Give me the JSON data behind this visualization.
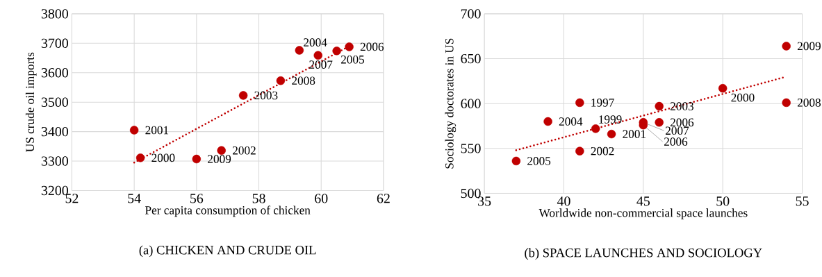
{
  "chart_data": [
    {
      "type": "scatter",
      "title": "(a) CHICKEN AND CRUDE OIL",
      "xlabel": "Per capita consumption of chicken",
      "ylabel": "US crude oil imports",
      "xlim": [
        52,
        62
      ],
      "xticks": [
        52,
        54,
        56,
        58,
        60,
        62
      ],
      "ylim": [
        3200,
        3800
      ],
      "yticks": [
        3200,
        3300,
        3400,
        3500,
        3600,
        3700,
        3800
      ],
      "grid": true,
      "marker": "circle",
      "series": [
        {
          "color": "#c00000",
          "x": [
            54.0,
            54.2,
            56.0,
            56.8,
            57.5,
            58.7,
            59.3,
            59.9,
            60.5,
            60.9
          ],
          "values": [
            3405,
            3311,
            3307,
            3336,
            3523,
            3573,
            3676,
            3659,
            3674,
            3688
          ]
        },
        {
          "type": "line",
          "color": "#c00000",
          "line_style": "dotted",
          "marker": "none",
          "x": [
            54.0,
            60.9
          ],
          "values": [
            3295,
            3690
          ]
        }
      ],
      "annotations": [
        {
          "text": "2001",
          "x": 54.0,
          "y": 3405
        },
        {
          "text": "2000",
          "x": 54.2,
          "y": 3311
        },
        {
          "text": "2009",
          "x": 56.0,
          "y": 3307
        },
        {
          "text": "2002",
          "x": 56.8,
          "y": 3336
        },
        {
          "text": "2003",
          "x": 57.5,
          "y": 3523
        },
        {
          "text": "2008",
          "x": 58.7,
          "y": 3573
        },
        {
          "text": "2004",
          "x": 59.3,
          "y": 3676
        },
        {
          "text": "2007",
          "x": 59.9,
          "y": 3659
        },
        {
          "text": "2005",
          "x": 60.5,
          "y": 3674
        },
        {
          "text": "2006",
          "x": 60.9,
          "y": 3688
        }
      ]
    },
    {
      "type": "scatter",
      "title": "(b) SPACE LAUNCHES AND SOCIOLOGY",
      "xlabel": "Worldwide non-commercial space launches",
      "ylabel": "Sociology doctorates in US",
      "xlim": [
        35,
        55
      ],
      "xticks": [
        35,
        40,
        45,
        50,
        55
      ],
      "ylim": [
        500,
        700
      ],
      "yticks": [
        500,
        550,
        600,
        650,
        700
      ],
      "grid": true,
      "marker": "circle",
      "series": [
        {
          "color": "#c00000",
          "x": [
            37,
            39,
            41,
            41,
            42,
            43,
            45,
            45,
            46,
            46,
            50,
            54,
            54
          ],
          "values": [
            536,
            580,
            601,
            547,
            572,
            566,
            579,
            576,
            597,
            579,
            617,
            664,
            601
          ]
        },
        {
          "type": "line",
          "color": "#c00000",
          "line_style": "dotted",
          "marker": "none",
          "x": [
            37,
            53.8
          ],
          "values": [
            548,
            629
          ]
        }
      ],
      "annotations": [
        {
          "text": "2005",
          "x": 37,
          "y": 536
        },
        {
          "text": "2004",
          "x": 39,
          "y": 580
        },
        {
          "text": "1997",
          "x": 41,
          "y": 601
        },
        {
          "text": "2002",
          "x": 41,
          "y": 547
        },
        {
          "text": "1999",
          "x": 42,
          "y": 572
        },
        {
          "text": "2001",
          "x": 43,
          "y": 566
        },
        {
          "text": "2007",
          "x": 45,
          "y": 579
        },
        {
          "text": "2006",
          "x": 45,
          "y": 576
        },
        {
          "text": "2003",
          "x": 46,
          "y": 597
        },
        {
          "text": "2006",
          "x": 46,
          "y": 579
        },
        {
          "text": "2000",
          "x": 50,
          "y": 617
        },
        {
          "text": "2009",
          "x": 54,
          "y": 664
        },
        {
          "text": "2008",
          "x": 54,
          "y": 601
        }
      ]
    }
  ]
}
